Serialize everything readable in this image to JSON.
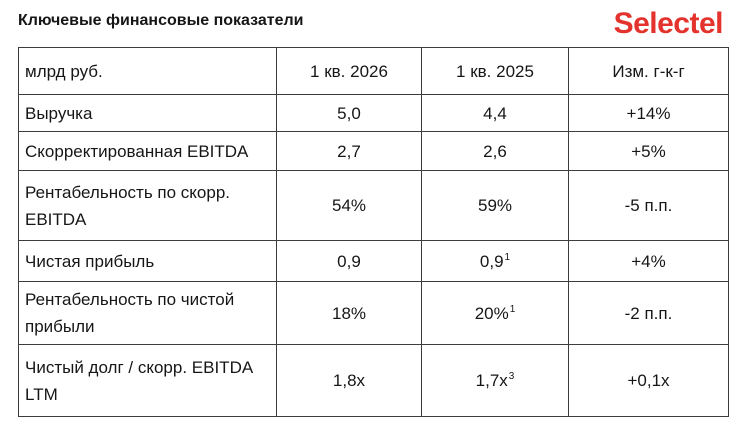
{
  "colors": {
    "brand": "#e4322d",
    "grid": "#3c3c3c",
    "text": "#161616"
  },
  "logo": {
    "text": "Selectel"
  },
  "chart_data": {
    "type": "table",
    "title": "Ключевые финансовые показатели",
    "columns": [
      "млрд руб.",
      "1 кв. 2026",
      "1 кв. 2025",
      "Изм. г-к-г"
    ],
    "rows": [
      {
        "label": [
          "Выручка"
        ],
        "values": [
          {
            "text": "5,0"
          },
          {
            "text": "4,4"
          },
          {
            "text": "+14%"
          }
        ]
      },
      {
        "label": [
          "Скорректированная EBITDA"
        ],
        "values": [
          {
            "text": "2,7"
          },
          {
            "text": "2,6"
          },
          {
            "text": "+5%"
          }
        ]
      },
      {
        "label": [
          "Рентабельность по скорр.",
          "EBITDA"
        ],
        "values": [
          {
            "text": "54%"
          },
          {
            "text": "59%"
          },
          {
            "text": "-5 п.п."
          }
        ]
      },
      {
        "label": [
          "Чистая прибыль"
        ],
        "values": [
          {
            "text": "0,9"
          },
          {
            "text": "0,9",
            "footnote": "1"
          },
          {
            "text": "+4%"
          }
        ]
      },
      {
        "label": [
          "Рентабельность по чистой",
          "прибыли"
        ],
        "values": [
          {
            "text": "18%"
          },
          {
            "text": "20%",
            "footnote": "1"
          },
          {
            "text": "-2 п.п."
          }
        ]
      },
      {
        "label": [
          "Чистый долг / скорр. EBITDA",
          "LTM"
        ],
        "values": [
          {
            "text": "1,8x"
          },
          {
            "text": "1,7x",
            "footnote": "3"
          },
          {
            "text": "+0,1x"
          }
        ]
      }
    ]
  }
}
